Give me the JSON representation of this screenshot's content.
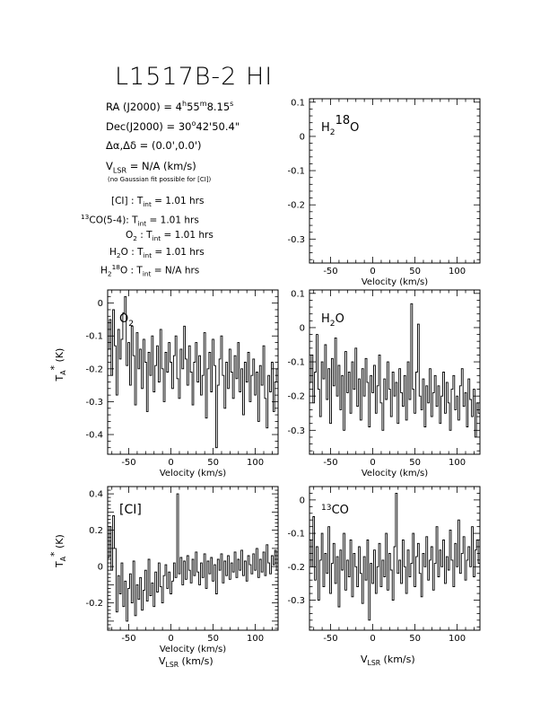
{
  "title": "L1517B-2 HI",
  "info": {
    "ra_label": "RA (J2000) =",
    "ra_h": "4",
    "ra_m": "55",
    "ra_s": "8.15",
    "dec_label": "Dec(J2000) =",
    "dec_d": "30",
    "dec_rest": "42'50.4\"",
    "offset_label": "Δα,Δδ = (0.0',0.0')",
    "vlsr_value": "= N/A  (km/s)",
    "note": "(no Gaussian fit possible for [CI])",
    "tint_rows": [
      {
        "line_sup": "",
        "line": "[CI] : T",
        "line_sub": "",
        "value": " = 1.01 hrs"
      },
      {
        "line_sup": "13",
        "line": "CO(5-4): T",
        "line_sub": "",
        "value": " = 1.01 hrs"
      },
      {
        "line_sup": "",
        "line": "O",
        "line_sub": "2",
        "value": " = 1.01 hrs"
      },
      {
        "line_sup": "",
        "line": "H",
        "line_sub": "2",
        "value": " = 1.01 hrs"
      },
      {
        "line_sup": "",
        "line": "H",
        "line_sub": "2",
        "value": " = N/A hrs"
      }
    ]
  },
  "chart_data": [
    {
      "id": "h218o",
      "type": "line",
      "label": "H2 18O",
      "xlabel": "Velocity (km/s)",
      "ylabel": "",
      "xlim": [
        -75,
        127
      ],
      "ylim": [
        -0.37,
        0.11
      ],
      "xticks": [
        -50,
        0,
        50,
        100
      ],
      "yticks": [
        0.1,
        0,
        -0.1,
        -0.2,
        -0.3
      ],
      "ytick_labels": [
        "0.1",
        "0",
        "-0.1",
        "-0.2",
        "-0.3"
      ],
      "x": [],
      "y": []
    },
    {
      "id": "o2",
      "type": "line",
      "label": "O2",
      "xlabel": "Velocity (km/s)",
      "ylabel": "T_A* (K)",
      "xlim": [
        -75,
        127
      ],
      "ylim": [
        -0.46,
        0.04
      ],
      "xticks": [
        -50,
        0,
        50,
        100
      ],
      "yticks": [
        0,
        -0.1,
        -0.2,
        -0.3,
        -0.4
      ],
      "ytick_labels": [
        "0",
        "-0.1",
        "-0.2",
        "-0.3",
        "-0.4"
      ],
      "x": [
        -74,
        -72,
        -70,
        -68,
        -66,
        -64,
        -62,
        -60,
        -58,
        -56,
        -54,
        -52,
        -50,
        -48,
        -46,
        -44,
        -42,
        -40,
        -38,
        -36,
        -34,
        -32,
        -30,
        -28,
        -26,
        -24,
        -22,
        -20,
        -18,
        -16,
        -14,
        -12,
        -10,
        -8,
        -6,
        -4,
        -2,
        0,
        2,
        4,
        6,
        8,
        10,
        12,
        14,
        16,
        18,
        20,
        22,
        24,
        26,
        28,
        30,
        32,
        34,
        36,
        38,
        40,
        42,
        44,
        46,
        48,
        50,
        52,
        54,
        56,
        58,
        60,
        62,
        64,
        66,
        68,
        70,
        72,
        74,
        76,
        78,
        80,
        82,
        84,
        86,
        88,
        90,
        92,
        94,
        96,
        98,
        100,
        102,
        104,
        106,
        108,
        110,
        112,
        114,
        116,
        118,
        120,
        122,
        124,
        126
      ],
      "y": [
        -0.14,
        -0.05,
        -0.22,
        -0.02,
        -0.13,
        -0.28,
        -0.08,
        -0.17,
        -0.11,
        -0.03,
        0.02,
        -0.19,
        -0.12,
        -0.25,
        -0.07,
        -0.16,
        -0.31,
        -0.09,
        -0.2,
        -0.14,
        -0.26,
        -0.11,
        -0.18,
        -0.33,
        -0.15,
        -0.22,
        -0.1,
        -0.27,
        -0.19,
        -0.13,
        -0.24,
        -0.08,
        -0.2,
        -0.3,
        -0.15,
        -0.21,
        -0.12,
        -0.18,
        -0.26,
        -0.16,
        -0.1,
        -0.23,
        -0.29,
        -0.14,
        -0.2,
        -0.07,
        -0.17,
        -0.25,
        -0.13,
        -0.21,
        -0.31,
        -0.18,
        -0.12,
        -0.24,
        -0.16,
        -0.28,
        -0.22,
        -0.09,
        -0.35,
        -0.2,
        -0.15,
        -0.27,
        -0.11,
        -0.19,
        -0.44,
        -0.25,
        -0.17,
        -0.1,
        -0.22,
        -0.32,
        -0.18,
        -0.26,
        -0.14,
        -0.21,
        -0.29,
        -0.16,
        -0.23,
        -0.12,
        -0.27,
        -0.2,
        -0.34,
        -0.18,
        -0.24,
        -0.15,
        -0.3,
        -0.22,
        -0.17,
        -0.28,
        -0.21,
        -0.36,
        -0.19,
        -0.25,
        -0.13,
        -0.29,
        -0.38,
        -0.22,
        -0.27,
        -0.18,
        -0.33,
        -0.24,
        -0.2
      ]
    },
    {
      "id": "h2o",
      "type": "line",
      "label": "H2O",
      "xlabel": "Velocity (km/s)",
      "ylabel": "",
      "xlim": [
        -75,
        127
      ],
      "ylim": [
        -0.37,
        0.11
      ],
      "xticks": [
        -50,
        0,
        50,
        100
      ],
      "yticks": [
        0.1,
        0,
        -0.1,
        -0.2,
        -0.3
      ],
      "ytick_labels": [
        "0.1",
        "0",
        "-0.1",
        "-0.2",
        "-0.3"
      ],
      "x": [
        -74,
        -72,
        -70,
        -68,
        -66,
        -64,
        -62,
        -60,
        -58,
        -56,
        -54,
        -52,
        -50,
        -48,
        -46,
        -44,
        -42,
        -40,
        -38,
        -36,
        -34,
        -32,
        -30,
        -28,
        -26,
        -24,
        -22,
        -20,
        -18,
        -16,
        -14,
        -12,
        -10,
        -8,
        -6,
        -4,
        -2,
        0,
        2,
        4,
        6,
        8,
        10,
        12,
        14,
        16,
        18,
        20,
        22,
        24,
        26,
        28,
        30,
        32,
        34,
        36,
        38,
        40,
        42,
        44,
        46,
        48,
        50,
        52,
        54,
        56,
        58,
        60,
        62,
        64,
        66,
        68,
        70,
        72,
        74,
        76,
        78,
        80,
        82,
        84,
        86,
        88,
        90,
        92,
        94,
        96,
        98,
        100,
        102,
        104,
        106,
        108,
        110,
        112,
        114,
        116,
        118,
        120,
        122,
        124,
        126
      ],
      "y": [
        -0.16,
        -0.08,
        -0.22,
        -0.13,
        -0.02,
        -0.18,
        -0.26,
        -0.1,
        -0.15,
        -0.05,
        -0.21,
        -0.12,
        -0.28,
        -0.09,
        -0.17,
        -0.03,
        -0.2,
        -0.11,
        -0.24,
        -0.14,
        -0.3,
        -0.07,
        -0.19,
        -0.13,
        -0.25,
        -0.1,
        -0.18,
        -0.06,
        -0.23,
        -0.15,
        -0.27,
        -0.12,
        -0.2,
        -0.09,
        -0.16,
        -0.29,
        -0.14,
        -0.19,
        -0.11,
        -0.25,
        -0.17,
        -0.08,
        -0.22,
        -0.3,
        -0.15,
        -0.21,
        -0.1,
        -0.18,
        -0.26,
        -0.13,
        -0.2,
        -0.16,
        -0.28,
        -0.12,
        -0.19,
        -0.23,
        -0.14,
        -0.27,
        -0.1,
        -0.21,
        0.07,
        -0.18,
        -0.25,
        -0.13,
        0.01,
        -0.2,
        -0.24,
        -0.15,
        -0.29,
        -0.17,
        -0.22,
        -0.12,
        -0.26,
        -0.19,
        -0.14,
        -0.23,
        -0.17,
        -0.28,
        -0.2,
        -0.13,
        -0.25,
        -0.16,
        -0.22,
        -0.3,
        -0.18,
        -0.14,
        -0.24,
        -0.2,
        -0.27,
        -0.17,
        -0.12,
        -0.23,
        -0.19,
        -0.29,
        -0.15,
        -0.21,
        -0.26,
        -0.18,
        -0.32,
        -0.22,
        -0.25
      ]
    },
    {
      "id": "ci",
      "type": "line",
      "label": "[CI]",
      "xlabel": "Velocity (km/s)",
      "xlabel2": "V_LSR (km/s)",
      "ylabel": "T_A* (K)",
      "xlim": [
        -75,
        127
      ],
      "ylim": [
        -0.35,
        0.44
      ],
      "xticks": [
        -50,
        0,
        50,
        100
      ],
      "yticks": [
        0.4,
        0.2,
        0,
        -0.2
      ],
      "ytick_labels": [
        "0.4",
        "0.2",
        "0",
        "-0.2"
      ],
      "x": [
        -74,
        -72,
        -70,
        -68,
        -66,
        -64,
        -62,
        -60,
        -58,
        -56,
        -54,
        -52,
        -50,
        -48,
        -46,
        -44,
        -42,
        -40,
        -38,
        -36,
        -34,
        -32,
        -30,
        -28,
        -26,
        -24,
        -22,
        -20,
        -18,
        -16,
        -14,
        -12,
        -10,
        -8,
        -6,
        -4,
        -2,
        0,
        2,
        4,
        6,
        8,
        10,
        12,
        14,
        16,
        18,
        20,
        22,
        24,
        26,
        28,
        30,
        32,
        34,
        36,
        38,
        40,
        42,
        44,
        46,
        48,
        50,
        52,
        54,
        56,
        58,
        60,
        62,
        64,
        66,
        68,
        70,
        72,
        74,
        76,
        78,
        80,
        82,
        84,
        86,
        88,
        90,
        92,
        94,
        96,
        98,
        100,
        102,
        104,
        106,
        108,
        110,
        112,
        114,
        116,
        118,
        120,
        122,
        124,
        126
      ],
      "y": [
        0.05,
        0.22,
        -0.02,
        0.28,
        0.1,
        -0.25,
        -0.05,
        -0.15,
        0.02,
        -0.22,
        -0.08,
        -0.3,
        -0.12,
        -0.04,
        -0.2,
        0.03,
        -0.27,
        -0.1,
        -0.18,
        -0.06,
        -0.24,
        -0.13,
        -0.02,
        -0.19,
        0.04,
        -0.16,
        -0.09,
        -0.22,
        -0.03,
        -0.14,
        0.02,
        -0.11,
        -0.2,
        -0.05,
        0.01,
        -0.12,
        -0.03,
        -0.15,
        -0.08,
        0.02,
        -0.06,
        0.4,
        -0.04,
        0.05,
        -0.1,
        0.03,
        -0.07,
        0.06,
        -0.02,
        -0.09,
        0.04,
        -0.05,
        0.08,
        -0.03,
        -0.1,
        0.02,
        -0.06,
        0.07,
        -0.12,
        0.03,
        -0.04,
        0.05,
        -0.08,
        0.01,
        -0.15,
        0.04,
        -0.02,
        0.07,
        -0.09,
        0.03,
        -0.05,
        0.06,
        -0.07,
        0.02,
        -0.03,
        0.08,
        -0.06,
        0.04,
        -0.02,
        0.09,
        -0.05,
        0.03,
        -0.08,
        0.06,
        0.01,
        -0.04,
        0.07,
        -0.02,
        0.1,
        -0.06,
        0.04,
        -0.03,
        0.08,
        -0.05,
        0.12,
        0.02,
        -0.04,
        0.06,
        0.01,
        0.09,
        -0.02
      ]
    },
    {
      "id": "13co",
      "type": "line",
      "label": "13CO",
      "xlabel": "",
      "xlabel2": "V_LSR (km/s)",
      "ylabel": "",
      "xlim": [
        -75,
        127
      ],
      "ylim": [
        -0.39,
        0.04
      ],
      "xticks": [
        -50,
        0,
        50,
        100
      ],
      "yticks": [
        0,
        -0.1,
        -0.2,
        -0.3
      ],
      "ytick_labels": [
        "0",
        "-0.1",
        "-0.2",
        "-0.3"
      ],
      "x": [
        -74,
        -72,
        -70,
        -68,
        -66,
        -64,
        -62,
        -60,
        -58,
        -56,
        -54,
        -52,
        -50,
        -48,
        -46,
        -44,
        -42,
        -40,
        -38,
        -36,
        -34,
        -32,
        -30,
        -28,
        -26,
        -24,
        -22,
        -20,
        -18,
        -16,
        -14,
        -12,
        -10,
        -8,
        -6,
        -4,
        -2,
        0,
        2,
        4,
        6,
        8,
        10,
        12,
        14,
        16,
        18,
        20,
        22,
        24,
        26,
        28,
        30,
        32,
        34,
        36,
        38,
        40,
        42,
        44,
        46,
        48,
        50,
        52,
        54,
        56,
        58,
        60,
        62,
        64,
        66,
        68,
        70,
        72,
        74,
        76,
        78,
        80,
        82,
        84,
        86,
        88,
        90,
        92,
        94,
        96,
        98,
        100,
        102,
        104,
        106,
        108,
        110,
        112,
        114,
        116,
        118,
        120,
        122,
        124,
        126
      ],
      "y": [
        -0.12,
        -0.2,
        -0.05,
        -0.24,
        -0.14,
        -0.3,
        -0.18,
        -0.1,
        -0.26,
        -0.16,
        -0.22,
        -0.08,
        -0.28,
        -0.19,
        -0.13,
        -0.25,
        -0.17,
        -0.32,
        -0.15,
        -0.21,
        -0.1,
        -0.27,
        -0.18,
        -0.23,
        -0.12,
        -0.29,
        -0.16,
        -0.2,
        -0.26,
        -0.14,
        -0.22,
        -0.31,
        -0.17,
        -0.24,
        -0.12,
        -0.36,
        -0.19,
        -0.25,
        -0.15,
        -0.28,
        -0.2,
        -0.13,
        -0.26,
        -0.18,
        -0.23,
        -0.1,
        -0.27,
        -0.16,
        -0.21,
        -0.3,
        -0.14,
        0.02,
        -0.22,
        -0.18,
        -0.25,
        -0.12,
        -0.2,
        -0.28,
        -0.15,
        -0.23,
        -0.19,
        -0.1,
        -0.26,
        -0.17,
        -0.13,
        -0.22,
        -0.29,
        -0.16,
        -0.2,
        -0.11,
        -0.24,
        -0.18,
        -0.14,
        -0.27,
        -0.19,
        -0.08,
        -0.23,
        -0.15,
        -0.2,
        -0.12,
        -0.25,
        -0.17,
        -0.21,
        -0.09,
        -0.18,
        -0.26,
        -0.13,
        -0.2,
        -0.06,
        -0.22,
        -0.16,
        -0.11,
        -0.24,
        -0.18,
        -0.14,
        -0.2,
        -0.08,
        -0.23,
        -0.15,
        -0.12,
        -0.19
      ]
    }
  ]
}
